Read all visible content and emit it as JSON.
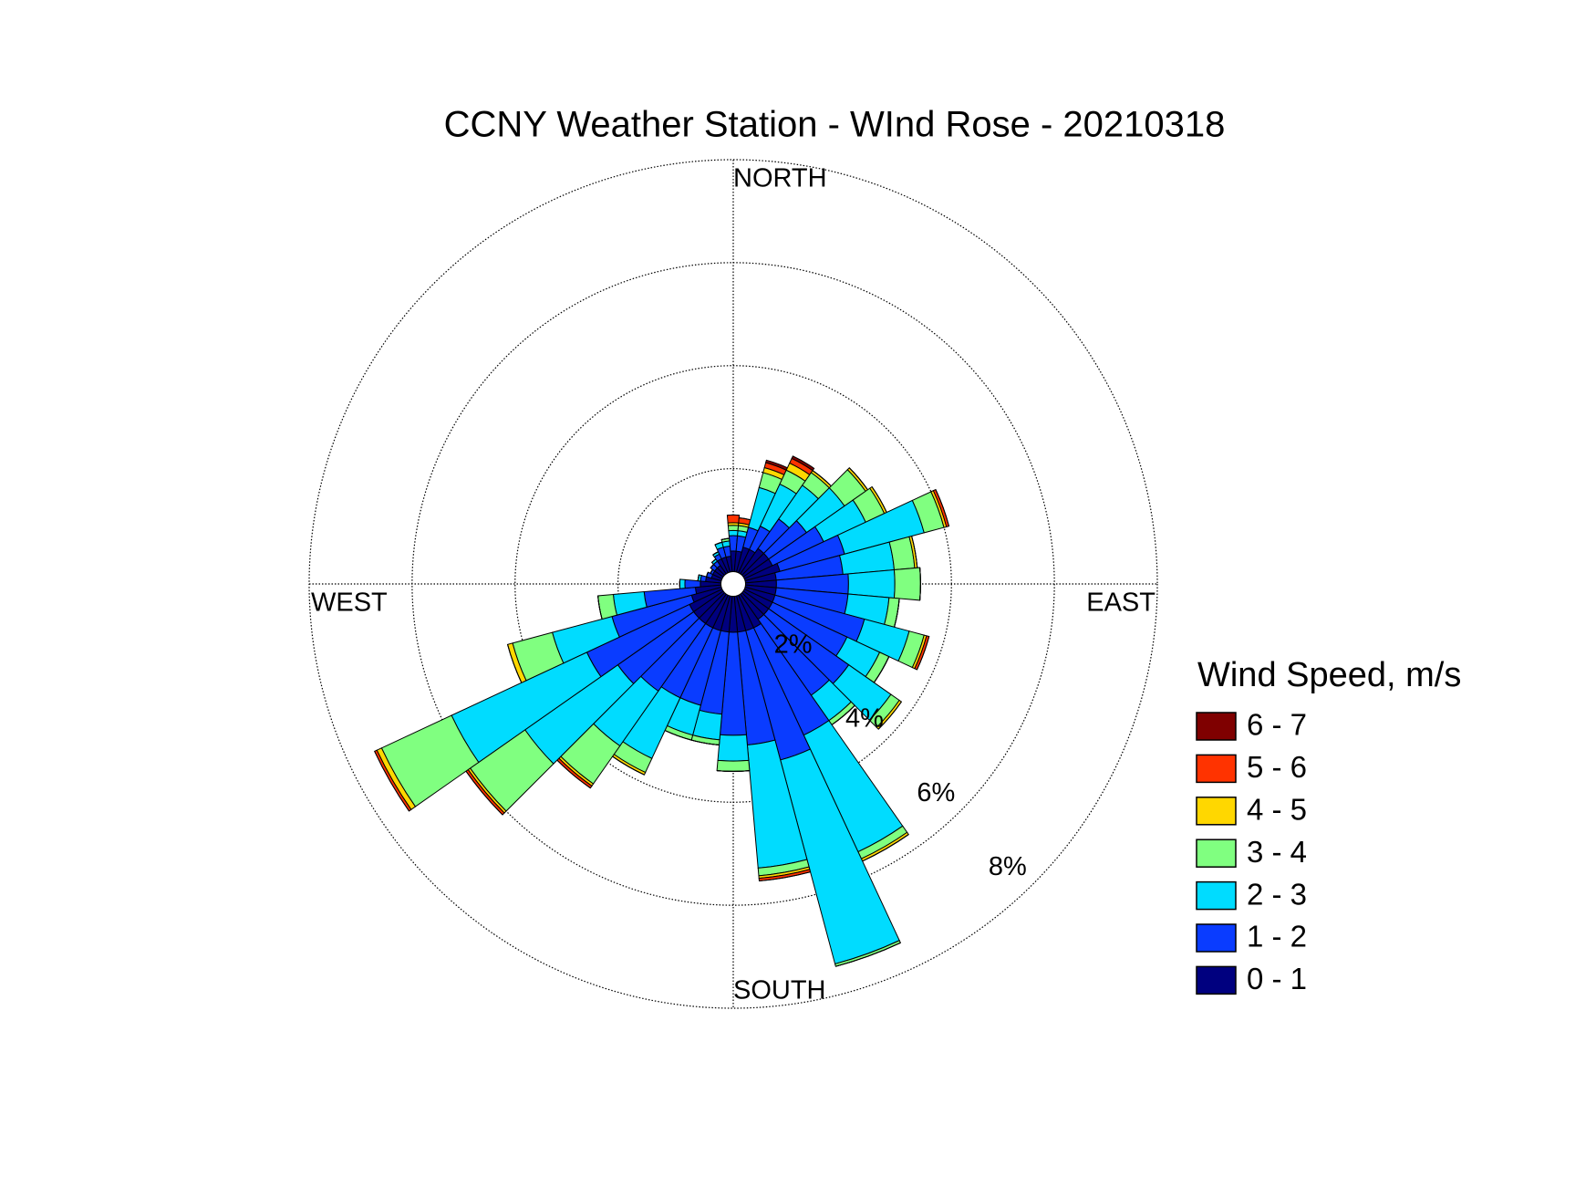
{
  "chart_data": {
    "type": "windrose",
    "title": "CCNY Weather Station - WInd Rose - 20210318",
    "direction_labels": [
      "NORTH",
      "EAST",
      "SOUTH",
      "WEST"
    ],
    "legend_title": "Wind Speed, m/s",
    "x": [
      0,
      10,
      20,
      30,
      40,
      50,
      60,
      70,
      80,
      90,
      100,
      110,
      120,
      130,
      140,
      150,
      160,
      170,
      180,
      190,
      200,
      210,
      220,
      230,
      240,
      250,
      260,
      270,
      280,
      290,
      300,
      310,
      320,
      330,
      340,
      350
    ],
    "rlim": [
      0,
      8
    ],
    "rticks": [
      {
        "value": 2,
        "label": "2%"
      },
      {
        "value": 4,
        "label": "4%"
      },
      {
        "value": 6,
        "label": "6%"
      },
      {
        "value": 8,
        "label": "8%"
      }
    ],
    "grid": true,
    "series": [
      {
        "name": "0 - 1",
        "color": "#00007f",
        "values": [
          0.4,
          0.4,
          0.5,
          0.5,
          0.6,
          0.6,
          0.6,
          0.7,
          0.6,
          0.6,
          0.6,
          0.6,
          0.6,
          0.6,
          0.6,
          0.7,
          0.7,
          0.7,
          0.7,
          0.7,
          0.7,
          0.7,
          0.7,
          0.7,
          0.7,
          0.6,
          0.5,
          0.4,
          0.3,
          0.2,
          0.2,
          0.2,
          0.2,
          0.3,
          0.3,
          0.3
        ]
      },
      {
        "name": "1 - 2",
        "color": "#0a3cff",
        "values": [
          0.3,
          0.3,
          0.4,
          0.5,
          0.7,
          0.9,
          1.1,
          1.3,
          1.3,
          1.4,
          1.4,
          1.8,
          1.6,
          1.9,
          1.8,
          2.3,
          2.6,
          2.2,
          2.0,
          1.6,
          1.5,
          1.5,
          1.6,
          1.8,
          2.2,
          1.6,
          1.0,
          0.3,
          0.1,
          0.1,
          0.05,
          0.1,
          0.1,
          0.1,
          0.2,
          0.2
        ]
      },
      {
        "name": "2 - 3",
        "color": "#00dcff",
        "values": [
          0.1,
          0.1,
          0.8,
          0.9,
          0.8,
          0.9,
          0.9,
          1.6,
          1.0,
          0.9,
          0.8,
          0.9,
          0.7,
          1.0,
          0.6,
          2.5,
          4.1,
          2.4,
          0.5,
          0.5,
          0.6,
          1.3,
          1.3,
          2.2,
          2.9,
          1.2,
          0.6,
          0.1,
          0.05,
          0,
          0,
          0,
          0.05,
          0.05,
          0.1,
          0.1
        ]
      },
      {
        "name": "3 - 4",
        "color": "#80ff80",
        "values": [
          0.1,
          0.1,
          0.3,
          0.3,
          0.3,
          0.5,
          0.4,
          0.4,
          0.4,
          0.5,
          0.2,
          0.3,
          0.2,
          0.2,
          0.1,
          0.15,
          0.05,
          0.15,
          0.2,
          0.1,
          0.1,
          0.3,
          0.9,
          1.3,
          1.5,
          0.8,
          0.3,
          0,
          0,
          0,
          0,
          0,
          0,
          0,
          0,
          0.05
        ]
      },
      {
        "name": "4 - 5",
        "color": "#ffd700",
        "values": [
          0.05,
          0.05,
          0.1,
          0.15,
          0.05,
          0.05,
          0.05,
          0.05,
          0.05,
          0,
          0,
          0.05,
          0,
          0.05,
          0,
          0.05,
          0,
          0.05,
          0,
          0,
          0,
          0.05,
          0.05,
          0.05,
          0.1,
          0.1,
          0,
          0,
          0,
          0,
          0,
          0,
          0,
          0,
          0,
          0
        ]
      },
      {
        "name": "5 - 6",
        "color": "#ff3300",
        "values": [
          0.15,
          0.1,
          0.1,
          0.1,
          0,
          0,
          0,
          0.05,
          0,
          0,
          0,
          0.05,
          0,
          0,
          0,
          0,
          0,
          0.05,
          0,
          0,
          0,
          0,
          0.05,
          0.05,
          0.05,
          0,
          0,
          0,
          0,
          0,
          0,
          0,
          0,
          0,
          0,
          0
        ]
      },
      {
        "name": "6 - 7",
        "color": "#7f0000",
        "values": [
          0,
          0,
          0.05,
          0.05,
          0,
          0,
          0,
          0,
          0,
          0,
          0,
          0,
          0,
          0,
          0,
          0,
          0,
          0,
          0,
          0,
          0,
          0,
          0,
          0,
          0,
          0,
          0,
          0,
          0,
          0,
          0,
          0,
          0,
          0,
          0,
          0
        ]
      }
    ]
  }
}
